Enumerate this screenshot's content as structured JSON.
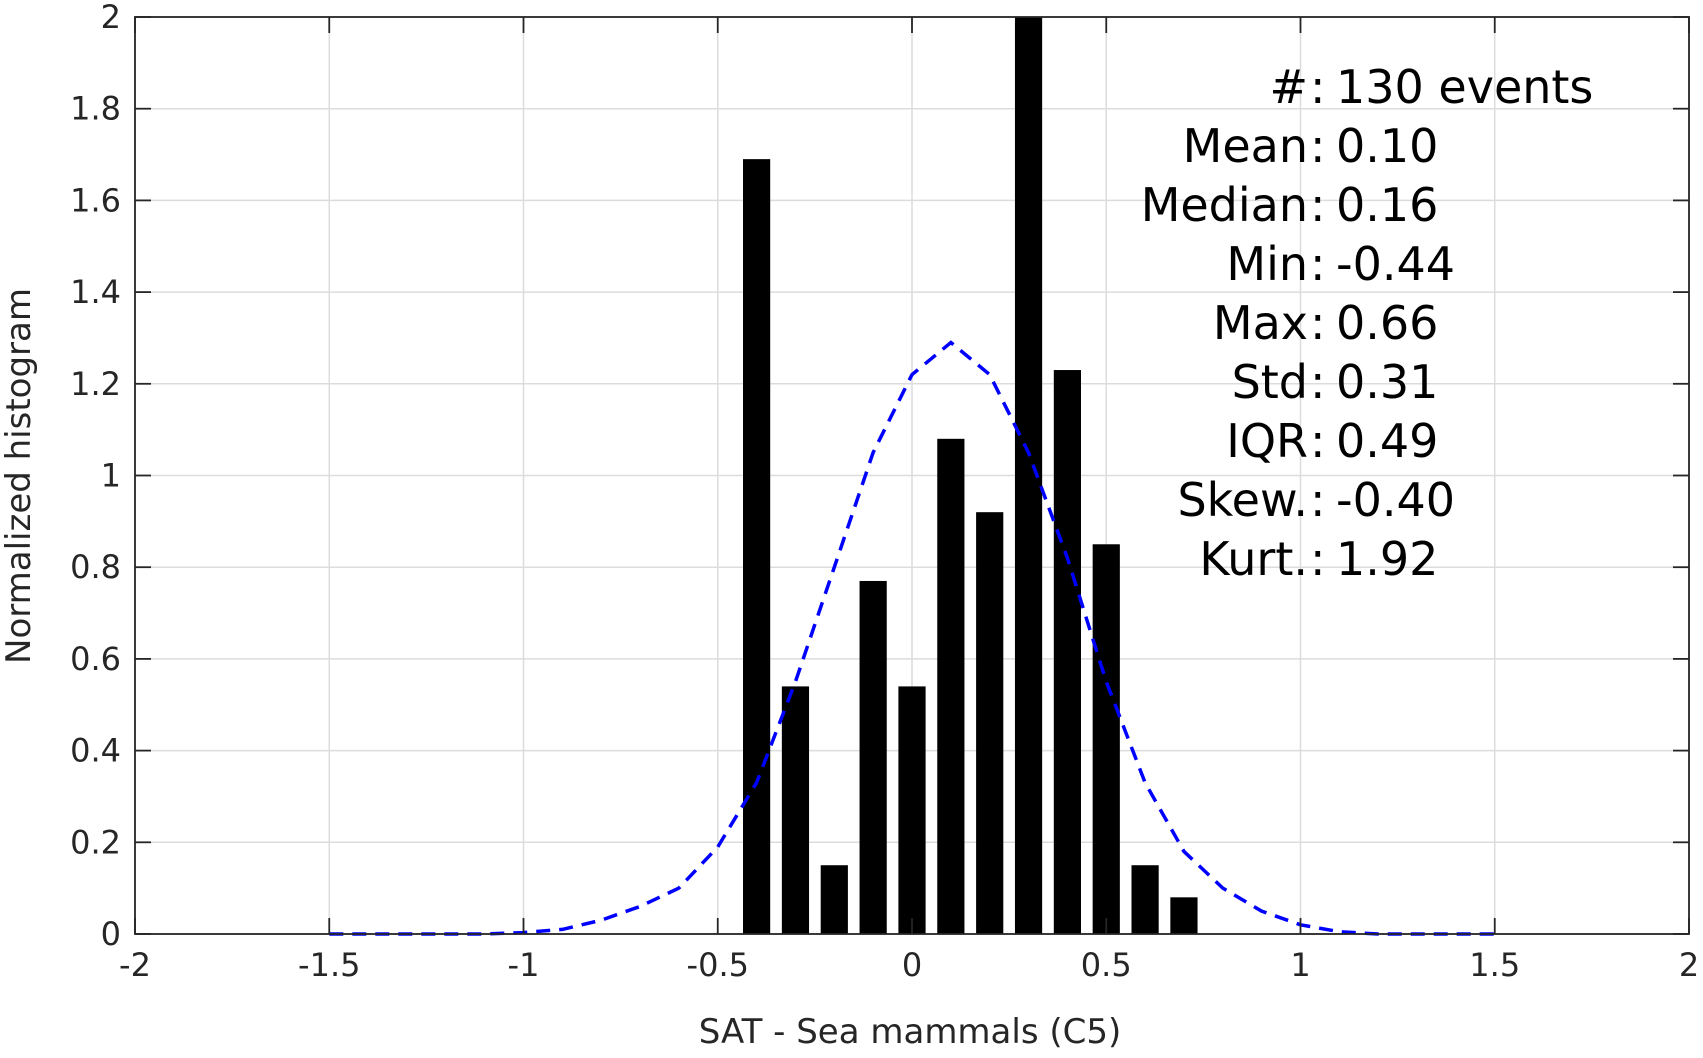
{
  "chart_data": {
    "type": "bar",
    "xlabel": "SAT - Sea mammals (C5)",
    "ylabel": "Normalized histogram",
    "xlim": [
      -2,
      2
    ],
    "ylim": [
      0,
      2
    ],
    "grid": true,
    "x_ticks": [
      -2,
      -1.5,
      -1,
      -0.5,
      0,
      0.5,
      1,
      1.5,
      2
    ],
    "x_tick_labels": [
      "-2",
      "-1.5",
      "-1",
      "-0.5",
      "0",
      "0.5",
      "1",
      "1.5",
      "2"
    ],
    "y_ticks": [
      0,
      0.2,
      0.4,
      0.6,
      0.8,
      1,
      1.2,
      1.4,
      1.6,
      1.8,
      2
    ],
    "y_tick_labels": [
      "0",
      "0.2",
      "0.4",
      "0.6",
      "0.8",
      "1",
      "1.2",
      "1.4",
      "1.6",
      "1.8",
      "2"
    ],
    "bar_width": 0.07,
    "bars": {
      "x": [
        -0.4,
        -0.3,
        -0.2,
        -0.1,
        0.0,
        0.1,
        0.2,
        0.3,
        0.4,
        0.5,
        0.6,
        0.7
      ],
      "values": [
        1.69,
        0.54,
        0.15,
        0.77,
        0.54,
        1.08,
        0.92,
        2.0,
        1.23,
        0.85,
        0.15,
        0.08
      ],
      "color": "#000000"
    },
    "fit_curve": {
      "style": "dashed",
      "color": "#0000ff",
      "x": [
        -1.5,
        -1.4,
        -1.3,
        -1.2,
        -1.1,
        -1.0,
        -0.9,
        -0.8,
        -0.7,
        -0.6,
        -0.5,
        -0.4,
        -0.3,
        -0.2,
        -0.1,
        0.0,
        0.1,
        0.2,
        0.3,
        0.4,
        0.5,
        0.6,
        0.7,
        0.8,
        0.9,
        1.0,
        1.1,
        1.2,
        1.3,
        1.4,
        1.5
      ],
      "y": [
        0.0,
        0.0,
        0.0,
        0.0,
        0.0,
        0.003,
        0.01,
        0.03,
        0.06,
        0.1,
        0.19,
        0.33,
        0.55,
        0.8,
        1.05,
        1.22,
        1.29,
        1.22,
        1.05,
        0.82,
        0.55,
        0.33,
        0.18,
        0.1,
        0.05,
        0.02,
        0.005,
        0.0,
        0.0,
        0.0,
        0.0
      ]
    },
    "stats": [
      {
        "label": "#  ",
        "value": "130 events"
      },
      {
        "label": "Mean ",
        "value": "0.10"
      },
      {
        "label": "Median ",
        "value": "0.16"
      },
      {
        "label": "Min ",
        "value": "-0.44"
      },
      {
        "label": "Max ",
        "value": "0.66"
      },
      {
        "label": "Std ",
        "value": "0.31"
      },
      {
        "label": "IQR ",
        "value": "0.49"
      },
      {
        "label": "Skew. ",
        "value": "-0.40"
      },
      {
        "label": "Kurt. ",
        "value": "1.92"
      }
    ]
  }
}
